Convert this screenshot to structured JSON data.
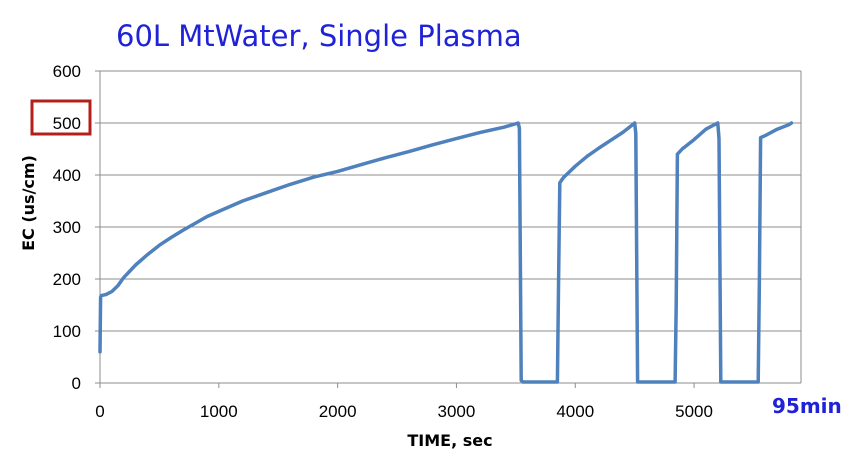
{
  "colors": {
    "title": "#1f22d6",
    "series": "#4f81bd",
    "grid": "#8c8c8c",
    "highlight_box": "#b3201c",
    "annotation": "#1f22d6"
  },
  "chart_data": {
    "type": "line",
    "title": "60L MtWater, Single Plasma",
    "xlabel": "TIME, sec",
    "ylabel": "EC (us/cm)",
    "xlim": [
      0,
      5900
    ],
    "ylim": [
      0,
      600
    ],
    "x_ticks": [
      0,
      1000,
      2000,
      3000,
      4000,
      5000
    ],
    "x_tick_labels": [
      "0",
      "1000",
      "2000",
      "3000",
      "4000",
      "5000"
    ],
    "y_ticks": [
      0,
      100,
      200,
      300,
      400,
      500,
      600
    ],
    "y_tick_labels": [
      "0",
      "100",
      "200",
      "300",
      "400",
      "500",
      "600"
    ],
    "grid": "horizontal",
    "legend": "none",
    "annotation": "95min",
    "highlighted_tick": "500",
    "series": [
      {
        "x": [
          0,
          5,
          10,
          50,
          100,
          150,
          200,
          300,
          400,
          500,
          600,
          700,
          800,
          900,
          1000,
          1200,
          1400,
          1600,
          1800,
          2000,
          2200,
          2400,
          2600,
          2800,
          3000,
          3200,
          3400,
          3520,
          3530,
          3545,
          3560,
          3850,
          3860,
          3870,
          3900,
          4000,
          4100,
          4200,
          4300,
          4400,
          4490,
          4500,
          4510,
          4525,
          4840,
          4850,
          4860,
          4900,
          5000,
          5100,
          5190,
          5200,
          5210,
          5225,
          5540,
          5550,
          5560,
          5600,
          5700,
          5800,
          5820
        ],
        "y": [
          60,
          165,
          168,
          170,
          176,
          187,
          203,
          227,
          247,
          265,
          280,
          294,
          307,
          320,
          330,
          350,
          366,
          382,
          396,
          407,
          420,
          433,
          445,
          458,
          470,
          482,
          492,
          500,
          490,
          5,
          2,
          2,
          200,
          385,
          395,
          417,
          436,
          452,
          467,
          482,
          498,
          500,
          480,
          2,
          2,
          150,
          440,
          450,
          468,
          488,
          499,
          500,
          470,
          2,
          2,
          200,
          472,
          476,
          488,
          497,
          500
        ]
      }
    ]
  }
}
